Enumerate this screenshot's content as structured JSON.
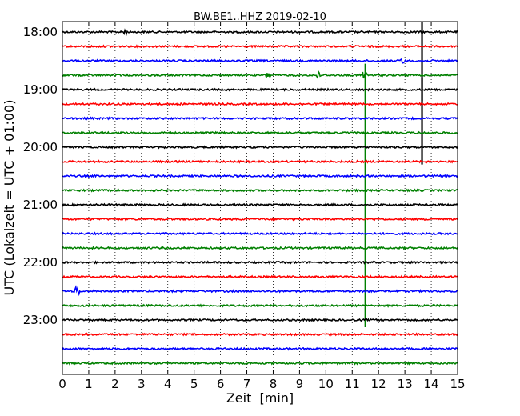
{
  "chart_data": {
    "type": "line",
    "title": "BW.BE1..HHZ 2019-02-10",
    "xlabel": "Zeit  [min]",
    "ylabel": "UTC (Lokalzeit = UTC + 01:00)",
    "xlim": [
      0,
      15
    ],
    "xticks": [
      0,
      1,
      2,
      3,
      4,
      5,
      6,
      7,
      8,
      9,
      10,
      11,
      12,
      13,
      14,
      15
    ],
    "ytick_labels": [
      "18:00",
      "19:00",
      "20:00",
      "21:00",
      "22:00",
      "23:00"
    ],
    "grid": {
      "vertical": true,
      "style": "dotted"
    },
    "trace_colors": [
      "#000000",
      "#ff0000",
      "#0000ff",
      "#008000"
    ],
    "trace_count": 24,
    "trace_interval_min": 15,
    "start_time": "18:00",
    "events": [
      {
        "trace_start": "18:45",
        "x_min": 11.45,
        "amplitude_traces": 0.6,
        "color": "#008000",
        "type": "burst"
      },
      {
        "trace_start": "18:45",
        "x_min": 11.5,
        "amplitude_traces": 17.5,
        "color": "#008000",
        "type": "spike"
      },
      {
        "trace_start": "18:45",
        "x_min": 7.8,
        "amplitude_traces": 0.3,
        "color": "#008000",
        "type": "burst"
      },
      {
        "trace_start": "18:45",
        "x_min": 9.7,
        "amplitude_traces": 0.25,
        "color": "#008000",
        "type": "burst"
      },
      {
        "trace_start": "18:00",
        "x_min": 13.65,
        "amplitude_traces": 4.8,
        "color": "#000000",
        "type": "spike"
      },
      {
        "trace_start": "19:00",
        "x_min": 13.65,
        "amplitude_traces": 5.2,
        "color": "#000000",
        "type": "spike"
      },
      {
        "trace_start": "18:00",
        "x_min": 2.35,
        "amplitude_traces": 0.3,
        "color": "#000000",
        "type": "burst"
      },
      {
        "trace_start": "18:30",
        "x_min": 12.9,
        "amplitude_traces": 0.25,
        "color": "#0000ff",
        "type": "burst"
      },
      {
        "trace_start": "22:30",
        "x_min": 0.55,
        "amplitude_traces": 0.55,
        "color": "#0000ff",
        "type": "burst"
      }
    ]
  }
}
